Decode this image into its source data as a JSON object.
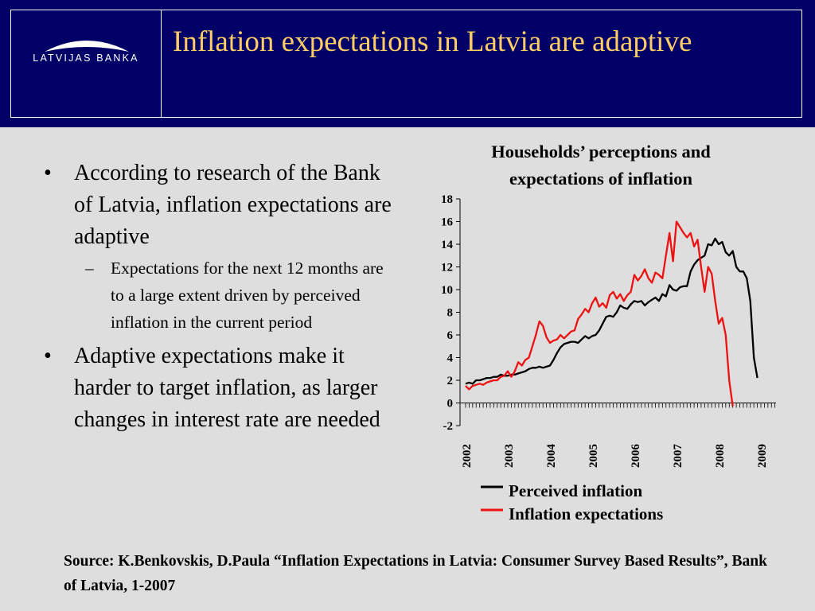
{
  "header": {
    "logo_text": "LATVIJAS BANKA",
    "title": "Inflation expectations in Latvia are adaptive",
    "background_color": "#000066",
    "title_color": "#ffcc66"
  },
  "bullets": [
    {
      "text": "According to research of the Bank of Latvia, inflation expectations are adaptive",
      "sub": [
        "Expectations for the next 12 months are to a large extent driven by perceived inflation in the current period"
      ]
    },
    {
      "text": "Adaptive expectations make it harder to target inflation, as larger changes in interest rate are needed",
      "sub": []
    }
  ],
  "source": "Source: K.Benkovskis, D.Paula “Inflation Expectations in Latvia: Consumer Survey Based Results”, Bank of Latvia, 1-2007",
  "chart_data": {
    "type": "line",
    "title": "Households’ perceptions and expectations of inflation",
    "xlabel": "",
    "ylabel": "",
    "ylim": [
      -2,
      18
    ],
    "yticks": [
      -2,
      0,
      2,
      4,
      6,
      8,
      10,
      12,
      14,
      16,
      18
    ],
    "x_tick_labels": [
      "2002",
      "2003",
      "2004",
      "2005",
      "2006",
      "2007",
      "2008",
      "2009"
    ],
    "x_start": 2002.0,
    "x_step": 0.0833333,
    "grid": false,
    "legend_position": "bottom",
    "series": [
      {
        "name": "Perceived inflation",
        "color": "#000000",
        "values": [
          1.7,
          1.8,
          1.7,
          2.0,
          2.0,
          2.1,
          2.2,
          2.2,
          2.3,
          2.3,
          2.5,
          2.4,
          2.4,
          2.5,
          2.5,
          2.6,
          2.7,
          2.8,
          3.0,
          3.1,
          3.1,
          3.2,
          3.1,
          3.2,
          3.3,
          3.8,
          4.4,
          4.9,
          5.2,
          5.3,
          5.4,
          5.4,
          5.3,
          5.6,
          5.9,
          5.7,
          5.9,
          6.0,
          6.4,
          7.0,
          7.6,
          7.7,
          7.6,
          8.0,
          8.6,
          8.4,
          8.3,
          8.7,
          9.0,
          8.9,
          9.0,
          8.6,
          8.9,
          9.1,
          9.3,
          9.0,
          9.6,
          9.4,
          10.4,
          10.0,
          9.9,
          10.2,
          10.3,
          10.3,
          11.6,
          12.2,
          12.6,
          12.8,
          13.0,
          14.0,
          13.9,
          14.5,
          14.0,
          14.2,
          13.3,
          13.0,
          13.4,
          12.0,
          11.6,
          11.6,
          11.0,
          9.0,
          4.0,
          2.2
        ]
      },
      {
        "name": "Inflation expectations",
        "color": "#ee1111",
        "values": [
          1.5,
          1.2,
          1.5,
          1.6,
          1.7,
          1.6,
          1.8,
          1.9,
          2.0,
          2.0,
          2.3,
          2.4,
          2.8,
          2.3,
          2.8,
          3.6,
          3.3,
          3.8,
          4.0,
          5.0,
          6.0,
          7.2,
          6.8,
          5.8,
          5.3,
          5.5,
          5.6,
          6.0,
          5.7,
          6.0,
          6.3,
          6.4,
          7.4,
          7.8,
          8.3,
          8.0,
          8.8,
          9.3,
          8.5,
          8.8,
          8.4,
          9.5,
          9.8,
          9.2,
          9.6,
          9.0,
          9.5,
          9.8,
          11.3,
          10.8,
          11.2,
          11.8,
          11.0,
          10.6,
          11.5,
          11.3,
          11.0,
          13.0,
          15.0,
          12.5,
          16.0,
          15.5,
          15.0,
          14.6,
          15.0,
          13.8,
          14.4,
          12.0,
          9.8,
          12.0,
          11.4,
          9.0,
          7.0,
          7.5,
          6.0,
          2.0,
          -0.3
        ]
      }
    ]
  }
}
